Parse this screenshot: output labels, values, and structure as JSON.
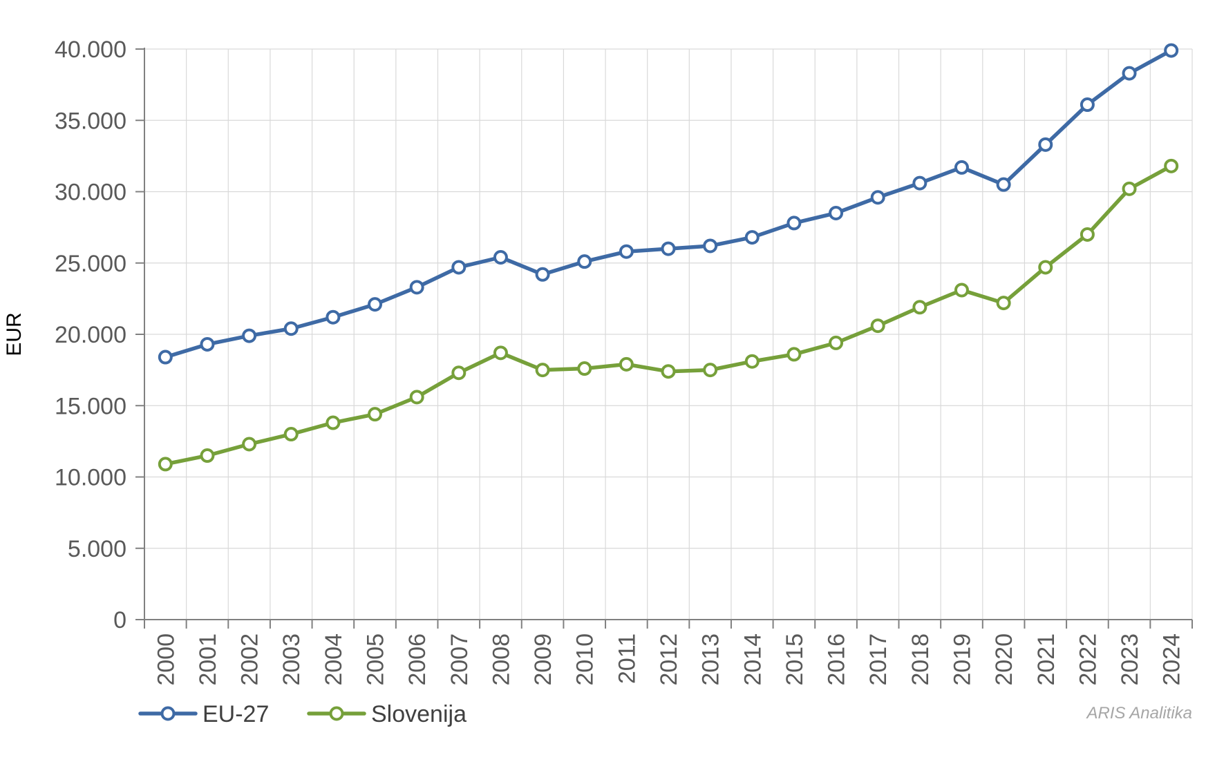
{
  "chart_data": {
    "type": "line",
    "title": "",
    "xlabel": "",
    "ylabel": "EUR",
    "ylim": [
      0,
      40000
    ],
    "yticks": [
      0,
      5000,
      10000,
      15000,
      20000,
      25000,
      30000,
      35000,
      40000
    ],
    "ytick_labels": [
      "0",
      "5.000",
      "10.000",
      "15.000",
      "20.000",
      "25.000",
      "30.000",
      "35.000",
      "40.000"
    ],
    "grid": true,
    "legend_position": "bottom-left",
    "categories": [
      "2000",
      "2001",
      "2002",
      "2003",
      "2004",
      "2005",
      "2006",
      "2007",
      "2008",
      "2009",
      "2010",
      "2011",
      "2012",
      "2013",
      "2014",
      "2015",
      "2016",
      "2017",
      "2018",
      "2019",
      "2020",
      "2021",
      "2022",
      "2023",
      "2024"
    ],
    "series": [
      {
        "name": "EU-27",
        "color": "#3E6AA5",
        "values": [
          18400,
          19300,
          19900,
          20400,
          21200,
          22100,
          23300,
          24700,
          25400,
          24200,
          25100,
          25800,
          26000,
          26200,
          26800,
          27800,
          28500,
          29600,
          30600,
          31700,
          30500,
          33300,
          36100,
          38300,
          39900
        ]
      },
      {
        "name": "Slovenija",
        "color": "#76A03A",
        "values": [
          10900,
          11500,
          12300,
          13000,
          13800,
          14400,
          15600,
          17300,
          18700,
          17500,
          17600,
          17900,
          17400,
          17500,
          18100,
          18600,
          19400,
          20600,
          21900,
          23100,
          22200,
          24700,
          27000,
          30200,
          31800
        ]
      }
    ]
  },
  "watermark": "ARIS Analitika",
  "colors": {
    "grid": "#d9d9d9",
    "axis": "#808080",
    "tick_text": "#595959"
  }
}
